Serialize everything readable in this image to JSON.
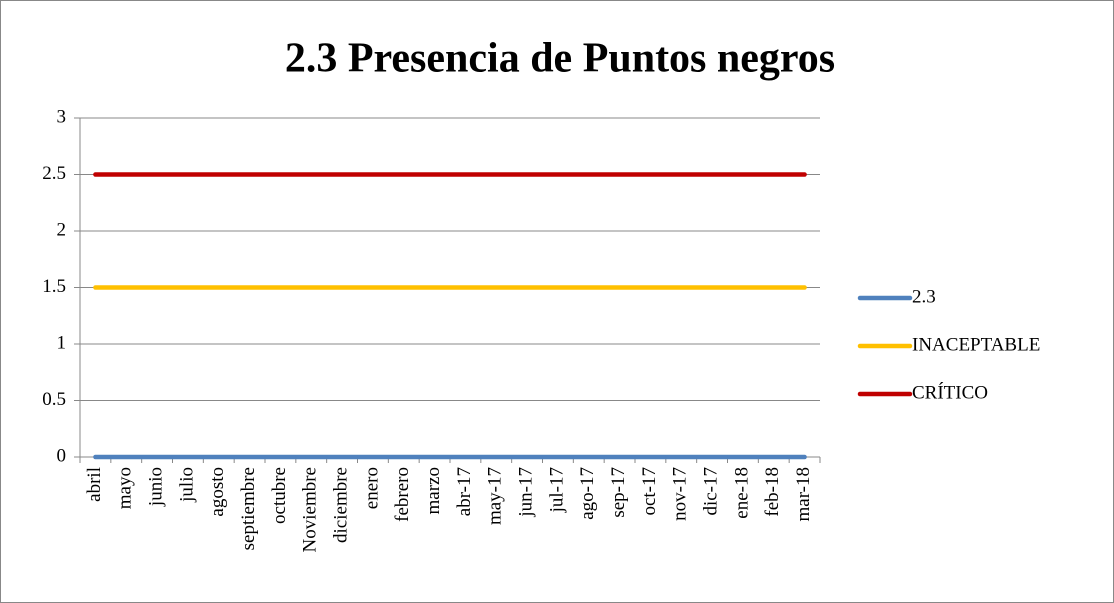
{
  "chart_data": {
    "type": "line",
    "title": "2.3 Presencia de Puntos negros",
    "categories": [
      "abril",
      "mayo",
      "junio",
      "julio",
      "agosto",
      "septiembre",
      "octubre",
      "Noviembre",
      "diciembre",
      "enero",
      "febrero",
      "marzo",
      "abr-17",
      "may-17",
      "jun-17",
      "jul-17",
      "ago-17",
      "sep-17",
      "oct-17",
      "nov-17",
      "dic-17",
      "ene-18",
      "feb-18",
      "mar-18"
    ],
    "series": [
      {
        "name": "2.3",
        "color": "#4f81bd",
        "values": [
          0,
          0,
          0,
          0,
          0,
          0,
          0,
          0,
          0,
          0,
          0,
          0,
          0,
          0,
          0,
          0,
          0,
          0,
          0,
          0,
          0,
          0,
          0,
          0
        ]
      },
      {
        "name": "INACEPTABLE",
        "color": "#ffc000",
        "values": [
          1.5,
          1.5,
          1.5,
          1.5,
          1.5,
          1.5,
          1.5,
          1.5,
          1.5,
          1.5,
          1.5,
          1.5,
          1.5,
          1.5,
          1.5,
          1.5,
          1.5,
          1.5,
          1.5,
          1.5,
          1.5,
          1.5,
          1.5,
          1.5
        ]
      },
      {
        "name": "CRÍTICO",
        "color": "#c00000",
        "values": [
          2.5,
          2.5,
          2.5,
          2.5,
          2.5,
          2.5,
          2.5,
          2.5,
          2.5,
          2.5,
          2.5,
          2.5,
          2.5,
          2.5,
          2.5,
          2.5,
          2.5,
          2.5,
          2.5,
          2.5,
          2.5,
          2.5,
          2.5,
          2.5
        ]
      }
    ],
    "ylim": [
      0,
      3
    ],
    "yticks": [
      0,
      0.5,
      1,
      1.5,
      2,
      2.5,
      3
    ],
    "grid": true,
    "legend": "right"
  }
}
